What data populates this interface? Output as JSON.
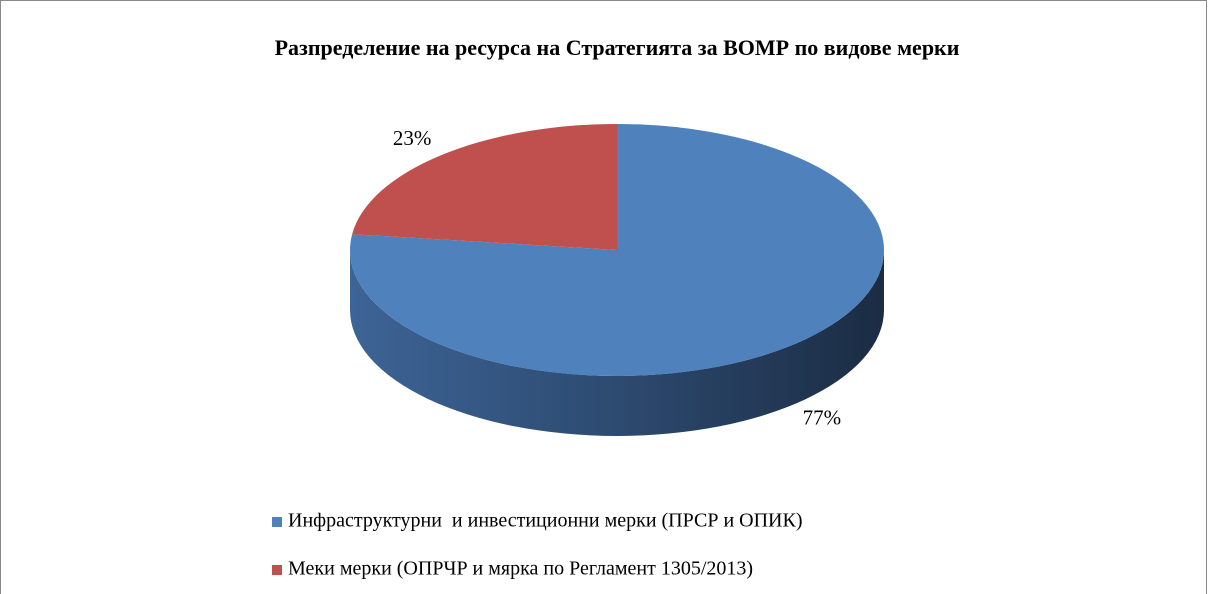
{
  "chart_data": {
    "type": "pie",
    "title": "Разпределение на ресурса на Стратегията за ВОМР по видове мерки",
    "categories": [
      "Инфраструктурни  и инвестиционни мерки (ПРСР и ОПИК)",
      "Меки мерки (ОПРЧР и мярка по Регламент 1305/2013)"
    ],
    "values": [
      77,
      23
    ],
    "value_labels": [
      "77%",
      "23%"
    ],
    "colors": [
      "#4f81bd",
      "#c0504d"
    ],
    "legend": "bottom"
  }
}
